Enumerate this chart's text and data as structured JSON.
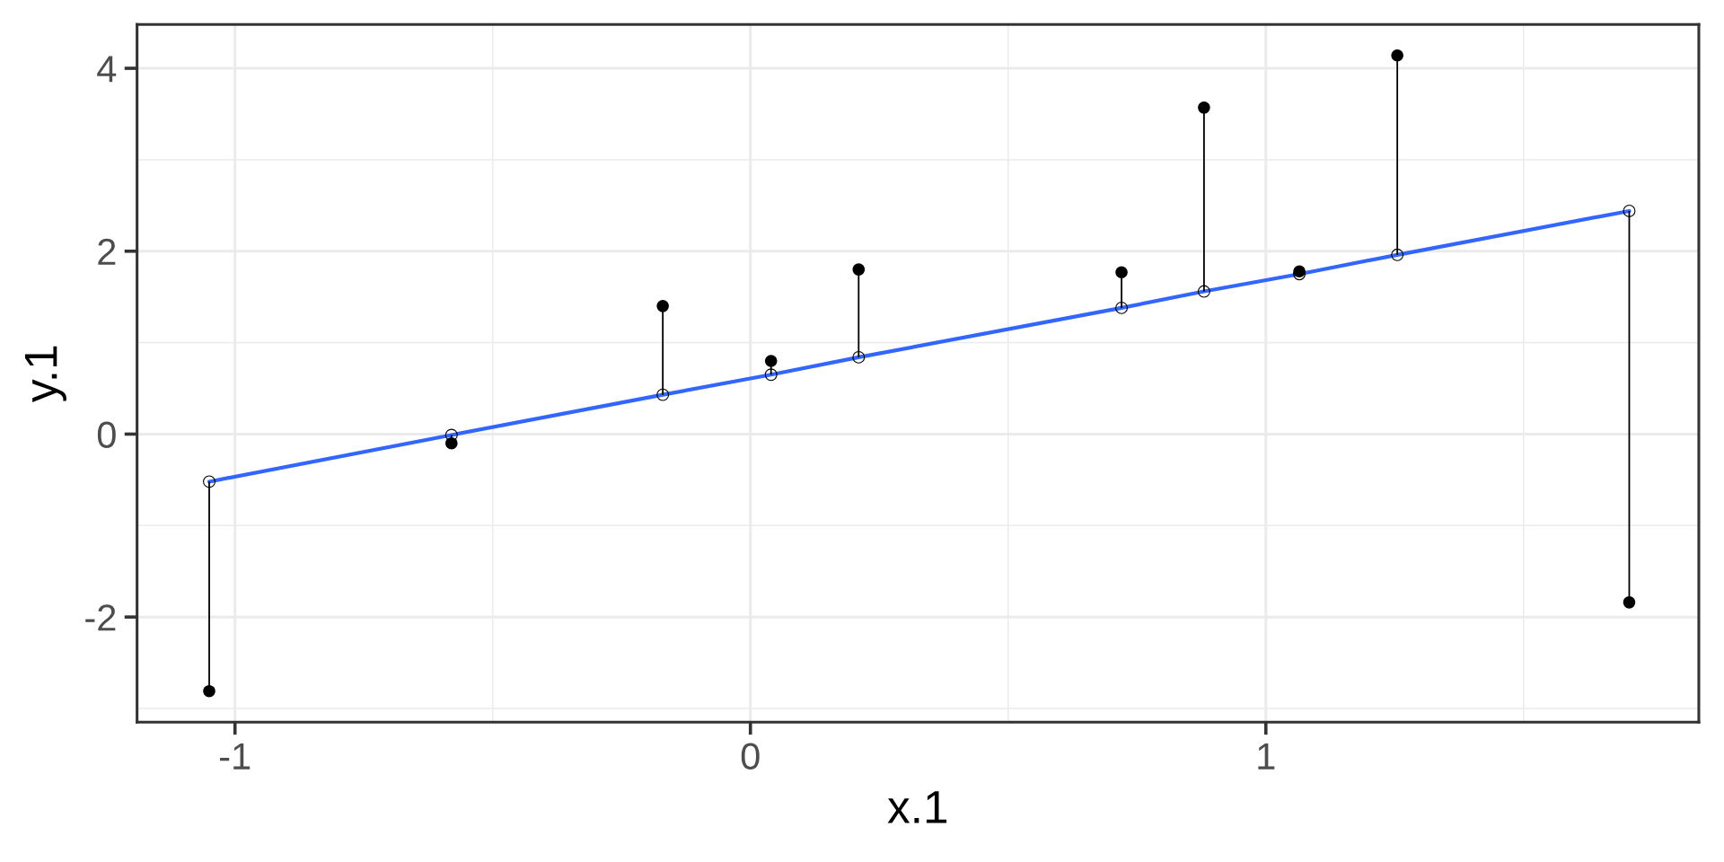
{
  "chart_data": {
    "type": "scatter",
    "xlabel": "x.1",
    "ylabel": "y.1",
    "xlim": [
      -1.19,
      1.84
    ],
    "ylim": [
      -3.15,
      4.48
    ],
    "xticks": [
      -1,
      0,
      1
    ],
    "yticks": [
      -2,
      0,
      2,
      4
    ],
    "grid": true,
    "series": [
      {
        "color": "#000000",
        "marker": "circle",
        "x": [
          -1.05,
          -0.58,
          -0.17,
          0.04,
          0.21,
          0.72,
          0.88,
          1.065,
          1.255,
          1.705
        ],
        "values": [
          -2.81,
          -0.1,
          1.4,
          0.8,
          1.8,
          1.77,
          3.57,
          1.78,
          4.14,
          -1.84
        ],
        "errors": [
          [
            -2.81,
            -0.52
          ],
          [
            -0.1,
            -0.01
          ],
          [
            0.43,
            1.4
          ],
          [
            0.65,
            0.8
          ],
          [
            0.84,
            1.8
          ],
          [
            1.38,
            1.77
          ],
          [
            1.56,
            3.57
          ],
          [
            1.75,
            1.78
          ],
          [
            1.96,
            4.14
          ],
          [
            -1.84,
            2.44
          ]
        ]
      },
      {
        "type": "line",
        "color": "#3366ff",
        "marker": "circle",
        "line_style": "solid",
        "colors": [
          "#000000",
          "#000000",
          "#000000",
          "#000000",
          "#000000",
          "#000000",
          "#000000",
          "#000000",
          "#000000",
          "#000000"
        ],
        "x": [
          -1.05,
          -0.58,
          -0.17,
          0.04,
          0.21,
          0.72,
          0.88,
          1.065,
          1.255,
          1.705
        ],
        "values": [
          -0.52,
          -0.01,
          0.43,
          0.65,
          0.84,
          1.38,
          1.56,
          1.75,
          1.96,
          2.44
        ]
      }
    ]
  }
}
